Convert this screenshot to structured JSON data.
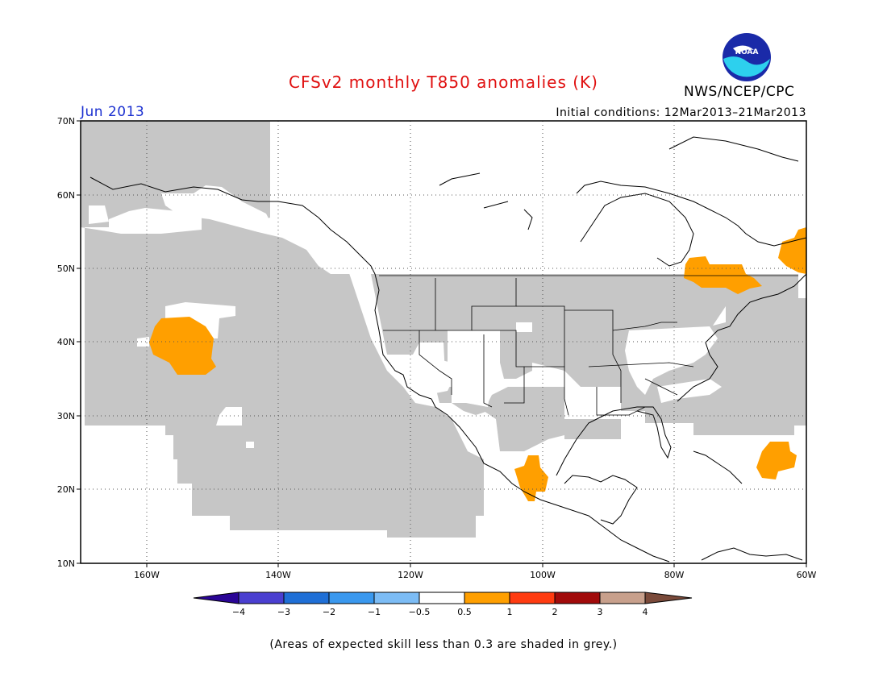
{
  "header": {
    "title": "CFSv2 monthly T850 anomalies (K)",
    "org": "NWS/NCEP/CPC",
    "logo_text": "NOAA",
    "month": "Jun 2013",
    "initial_conditions": "Initial conditions: 12Mar2013–21Mar2013"
  },
  "map": {
    "projection": "lat-lon",
    "lon_range": [
      -170,
      -60
    ],
    "lat_range": [
      10,
      70
    ],
    "lat_ticks": [
      "70N",
      "60N",
      "50N",
      "40N",
      "30N",
      "20N",
      "10N"
    ],
    "lon_ticks": [
      "160W",
      "140W",
      "120W",
      "100W",
      "80W",
      "60W"
    ],
    "colors": {
      "no_skill_grey": "#c6c6c6",
      "anomaly_0_5_to_1": "#ff9f00",
      "land_outline": "#000000"
    },
    "anomaly_regions": [
      {
        "name": "central-pacific-warm",
        "category": "0.5 to 1"
      },
      {
        "name": "quebec-warm",
        "category": "0.5 to 1"
      },
      {
        "name": "maritimes-warm",
        "category": "0.5 to 1"
      },
      {
        "name": "atlantic-warm",
        "category": "0.5 to 1"
      },
      {
        "name": "mexico-warm",
        "category": "0.5 to 1"
      }
    ]
  },
  "colorbar": {
    "labels": [
      "−4",
      "−3",
      "−2",
      "−1",
      "−0.5",
      "0.5",
      "1",
      "2",
      "3",
      "4"
    ],
    "colors": [
      "#2a0596",
      "#4a3fd0",
      "#1f6fd6",
      "#3a98ee",
      "#7cbcf5",
      "#ffffff",
      "#ff9f00",
      "#ff3b10",
      "#a10a0a",
      "#c8a08c",
      "#7a4a3a"
    ]
  },
  "footnote": "(Areas of expected skill less than 0.3 are shaded in grey.)"
}
